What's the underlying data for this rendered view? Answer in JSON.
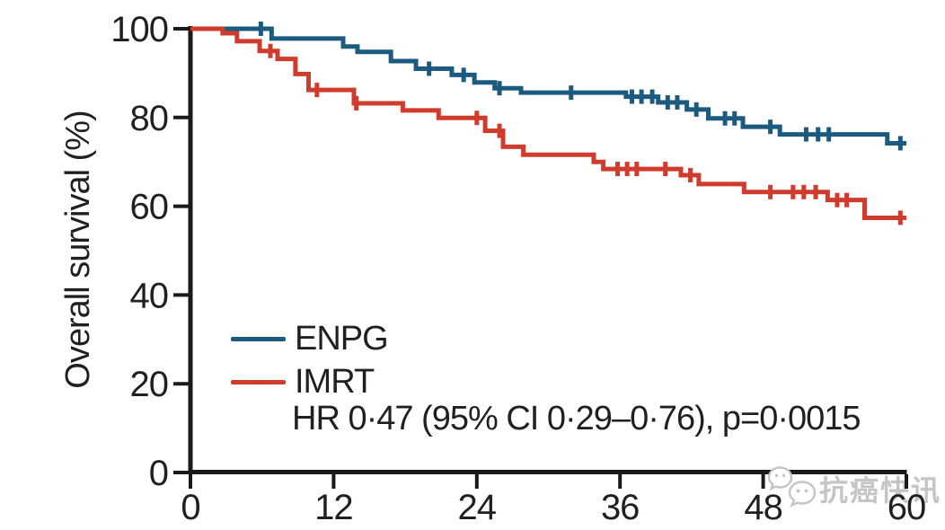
{
  "colors": {
    "axis": "#1a1a1a",
    "text": "#231f20",
    "enpg_blue": "#1c5a80",
    "imrt_red": "#cf3b2d",
    "watermark_gray": "#c5c5c5"
  },
  "chart_data": {
    "type": "line",
    "subtype": "kaplan-meier-step",
    "title": "",
    "xlabel": "",
    "ylabel": "Overall survival (%)",
    "xlim": [
      0,
      60
    ],
    "ylim": [
      0,
      100
    ],
    "x_ticks": [
      0,
      12,
      24,
      36,
      48,
      60
    ],
    "y_ticks": [
      0,
      20,
      40,
      60,
      80,
      100
    ],
    "grid": false,
    "legend_position": "inside-lower-left",
    "annotation": "HR 0·47 (95% CI 0·29–0·76), p=0·0015",
    "series": [
      {
        "name": "ENPG",
        "color": "#1c5a80",
        "points": [
          [
            0,
            100
          ],
          [
            6.8,
            97.8
          ],
          [
            12.8,
            96.0
          ],
          [
            14.0,
            94.8
          ],
          [
            16.8,
            92.7
          ],
          [
            18.9,
            91.0
          ],
          [
            21.9,
            89.6
          ],
          [
            23.8,
            87.9
          ],
          [
            25.5,
            86.6
          ],
          [
            27.7,
            85.6
          ],
          [
            36.5,
            84.7
          ],
          [
            39.2,
            83.4
          ],
          [
            41.6,
            81.8
          ],
          [
            43.4,
            79.8
          ],
          [
            46.3,
            77.9
          ],
          [
            49.4,
            76.2
          ],
          [
            58.4,
            74.2
          ],
          [
            60,
            74.2
          ]
        ],
        "censors": [
          [
            5.9,
            100
          ],
          [
            20.0,
            91.0
          ],
          [
            22.9,
            89.6
          ],
          [
            25.9,
            86.6
          ],
          [
            31.9,
            85.6
          ],
          [
            37.0,
            84.7
          ],
          [
            37.8,
            84.7
          ],
          [
            38.7,
            84.7
          ],
          [
            40.0,
            83.4
          ],
          [
            40.8,
            83.4
          ],
          [
            42.4,
            81.8
          ],
          [
            44.8,
            79.8
          ],
          [
            45.6,
            79.8
          ],
          [
            48.6,
            77.9
          ],
          [
            51.6,
            76.2
          ],
          [
            52.6,
            76.2
          ],
          [
            53.5,
            76.2
          ],
          [
            59.5,
            74.2
          ]
        ]
      },
      {
        "name": "IMRT",
        "color": "#cf3b2d",
        "points": [
          [
            0,
            100
          ],
          [
            2.7,
            99.0
          ],
          [
            3.9,
            97.2
          ],
          [
            5.8,
            95.0
          ],
          [
            7.3,
            93.2
          ],
          [
            8.8,
            89.8
          ],
          [
            9.9,
            86.2
          ],
          [
            13.7,
            83.2
          ],
          [
            17.8,
            81.6
          ],
          [
            20.8,
            79.9
          ],
          [
            24.7,
            77.0
          ],
          [
            26.2,
            73.4
          ],
          [
            27.9,
            71.6
          ],
          [
            33.8,
            70.0
          ],
          [
            34.6,
            68.4
          ],
          [
            41.1,
            67.0
          ],
          [
            42.6,
            65.0
          ],
          [
            46.4,
            63.2
          ],
          [
            53.4,
            61.4
          ],
          [
            56.5,
            57.4
          ],
          [
            60,
            57.4
          ]
        ],
        "censors": [
          [
            6.7,
            95.0
          ],
          [
            10.6,
            86.2
          ],
          [
            13.9,
            83.2
          ],
          [
            24.0,
            79.9
          ],
          [
            25.9,
            77.0
          ],
          [
            35.8,
            68.4
          ],
          [
            36.6,
            68.4
          ],
          [
            37.4,
            68.4
          ],
          [
            39.8,
            68.4
          ],
          [
            41.9,
            67.0
          ],
          [
            48.6,
            63.2
          ],
          [
            50.5,
            63.2
          ],
          [
            51.4,
            63.2
          ],
          [
            52.4,
            63.2
          ],
          [
            54.2,
            61.4
          ],
          [
            55.0,
            61.4
          ],
          [
            59.5,
            57.4
          ]
        ]
      }
    ]
  },
  "watermark": {
    "text": "抗癌快讯",
    "icon": "chat-bubbles-icon"
  }
}
